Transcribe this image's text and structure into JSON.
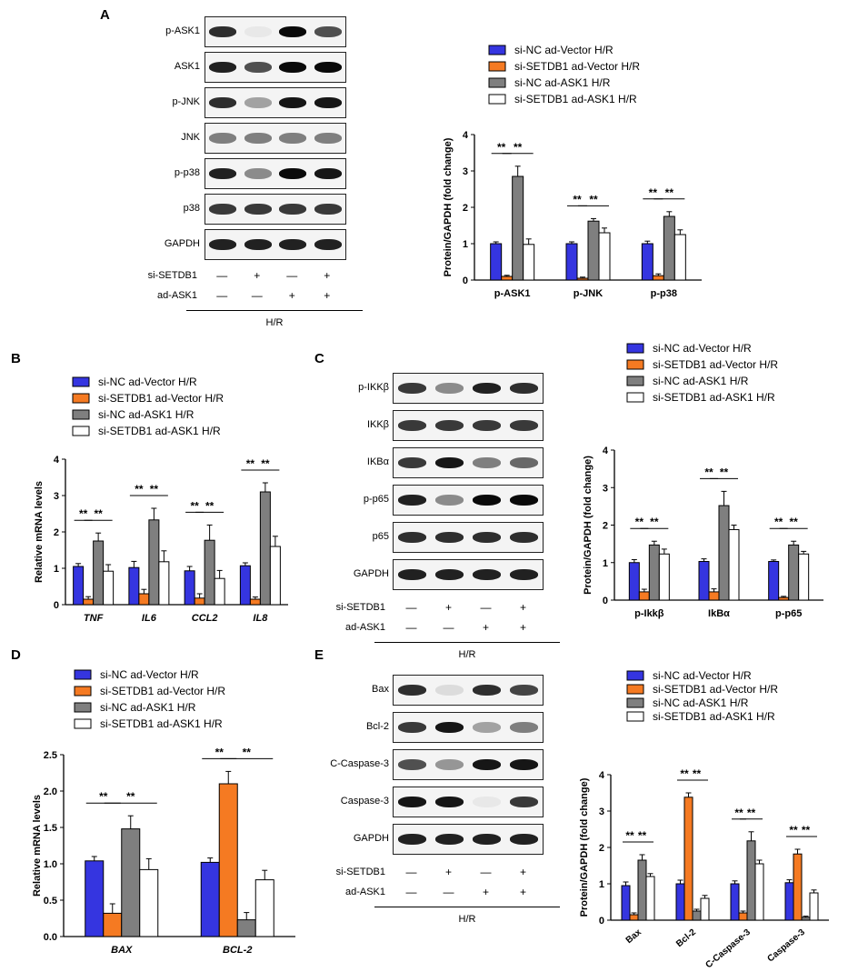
{
  "colors": {
    "vector": "#3535e0",
    "setdb1": "#f57a22",
    "ask1": "#7f7f7f",
    "setdb1ask1": "#ffffff"
  },
  "legend": [
    "si-NC ad-Vector H/R",
    "si-SETDB1 ad-Vector H/R",
    "si-NC ad-ASK1 H/R",
    "si-SETDB1 ad-ASK1 H/R"
  ],
  "conditions": {
    "si_label": "si-SETDB1",
    "ad_label": "ad-ASK1",
    "si": [
      "—",
      "+",
      "—",
      "+"
    ],
    "ad": [
      "—",
      "—",
      "+",
      "+"
    ],
    "hr": "H/R"
  },
  "sig": "**",
  "panels": {
    "A": {
      "letter": "A",
      "blots": [
        "p-ASK1",
        "ASK1",
        "p-JNK",
        "JNK",
        "p-p38",
        "p38",
        "GAPDH"
      ]
    },
    "B": {
      "letter": "B"
    },
    "C": {
      "letter": "C",
      "blots": [
        "p-IKKβ",
        "IKKβ",
        "IKBα",
        "p-p65",
        "p65",
        "GAPDH"
      ]
    },
    "D": {
      "letter": "D"
    },
    "E": {
      "letter": "E",
      "blots": [
        "Bax",
        "Bcl-2",
        "C-Caspase-3",
        "Caspase-3",
        "GAPDH"
      ]
    }
  },
  "chart_data": [
    {
      "id": "A",
      "type": "bar",
      "ylabel": "Protein/GAPDH (fold change)",
      "ylim": [
        0,
        4
      ],
      "yticks": [
        0,
        1,
        2,
        3,
        4
      ],
      "categories": [
        "p-ASK1",
        "p-JNK",
        "p-p38"
      ],
      "italic": false,
      "series": [
        {
          "name": "si-NC ad-Vector H/R",
          "values": [
            1.0,
            1.0,
            1.0
          ],
          "errors": [
            0.05,
            0.05,
            0.07
          ]
        },
        {
          "name": "si-SETDB1 ad-Vector H/R",
          "values": [
            0.1,
            0.05,
            0.12
          ],
          "errors": [
            0.03,
            0.03,
            0.05
          ]
        },
        {
          "name": "si-NC ad-ASK1 H/R",
          "values": [
            2.85,
            1.62,
            1.75
          ],
          "errors": [
            0.28,
            0.07,
            0.13
          ]
        },
        {
          "name": "si-SETDB1 ad-ASK1 H/R",
          "values": [
            0.98,
            1.3,
            1.25
          ],
          "errors": [
            0.15,
            0.13,
            0.13
          ]
        }
      ]
    },
    {
      "id": "B",
      "type": "bar",
      "ylabel": "Relative mRNA levels",
      "ylim": [
        0,
        4
      ],
      "yticks": [
        0,
        1,
        2,
        3,
        4
      ],
      "categories": [
        "TNF",
        "IL6",
        "CCL2",
        "IL8"
      ],
      "italic": true,
      "series": [
        {
          "name": "si-NC ad-Vector H/R",
          "values": [
            1.05,
            1.02,
            0.93,
            1.07
          ],
          "errors": [
            0.08,
            0.17,
            0.12,
            0.08
          ]
        },
        {
          "name": "si-SETDB1 ad-Vector H/R",
          "values": [
            0.15,
            0.3,
            0.18,
            0.15
          ],
          "errors": [
            0.07,
            0.12,
            0.12,
            0.06
          ]
        },
        {
          "name": "si-NC ad-ASK1 H/R",
          "values": [
            1.75,
            2.33,
            1.77,
            3.1
          ],
          "errors": [
            0.22,
            0.32,
            0.42,
            0.25
          ]
        },
        {
          "name": "si-SETDB1 ad-ASK1 H/R",
          "values": [
            0.92,
            1.18,
            0.72,
            1.6
          ],
          "errors": [
            0.18,
            0.3,
            0.22,
            0.28
          ]
        }
      ]
    },
    {
      "id": "C",
      "type": "bar",
      "ylabel": "Protein/GAPDH (fold change)",
      "ylim": [
        0,
        4
      ],
      "yticks": [
        0,
        1,
        2,
        3,
        4
      ],
      "categories": [
        "p-Ikkβ",
        "IkBα",
        "p-p65"
      ],
      "italic": false,
      "series": [
        {
          "name": "si-NC ad-Vector H/R",
          "values": [
            1.0,
            1.03,
            1.03
          ],
          "errors": [
            0.08,
            0.07,
            0.04
          ]
        },
        {
          "name": "si-SETDB1 ad-Vector H/R",
          "values": [
            0.22,
            0.22,
            0.07
          ],
          "errors": [
            0.07,
            0.08,
            0.03
          ]
        },
        {
          "name": "si-NC ad-ASK1 H/R",
          "values": [
            1.47,
            2.52,
            1.47
          ],
          "errors": [
            0.1,
            0.38,
            0.1
          ]
        },
        {
          "name": "si-SETDB1 ad-ASK1 H/R",
          "values": [
            1.23,
            1.88,
            1.23
          ],
          "errors": [
            0.13,
            0.12,
            0.07
          ]
        }
      ]
    },
    {
      "id": "D",
      "type": "bar",
      "ylabel": "Relative mRNA levels",
      "ylim": [
        0,
        2.5
      ],
      "yticks": [
        0.0,
        0.5,
        1.0,
        1.5,
        2.0,
        2.5
      ],
      "categories": [
        "BAX",
        "BCL-2"
      ],
      "italic": true,
      "series": [
        {
          "name": "si-NC ad-Vector H/R",
          "values": [
            1.04,
            1.02
          ],
          "errors": [
            0.06,
            0.06
          ]
        },
        {
          "name": "si-SETDB1 ad-Vector H/R",
          "values": [
            0.32,
            2.1
          ],
          "errors": [
            0.13,
            0.17
          ]
        },
        {
          "name": "si-NC ad-ASK1 H/R",
          "values": [
            1.48,
            0.23
          ],
          "errors": [
            0.18,
            0.1
          ]
        },
        {
          "name": "si-SETDB1 ad-ASK1 H/R",
          "values": [
            0.92,
            0.78
          ],
          "errors": [
            0.15,
            0.13
          ]
        }
      ]
    },
    {
      "id": "E",
      "type": "bar",
      "ylabel": "Protein/GAPDH (fold change)",
      "ylim": [
        0,
        4
      ],
      "yticks": [
        0,
        1,
        2,
        3,
        4
      ],
      "categories": [
        "Bax",
        "Bcl-2",
        "C-Caspase-3",
        "Caspase-3"
      ],
      "italic": false,
      "series": [
        {
          "name": "si-NC ad-Vector H/R",
          "values": [
            0.95,
            1.0,
            1.0,
            1.03
          ],
          "errors": [
            0.1,
            0.1,
            0.08,
            0.08
          ]
        },
        {
          "name": "si-SETDB1 ad-Vector H/R",
          "values": [
            0.15,
            3.38,
            0.2,
            1.82
          ],
          "errors": [
            0.05,
            0.12,
            0.05,
            0.13
          ]
        },
        {
          "name": "si-NC ad-ASK1 H/R",
          "values": [
            1.65,
            0.25,
            2.18,
            0.08
          ],
          "errors": [
            0.15,
            0.05,
            0.25,
            0.03
          ]
        },
        {
          "name": "si-SETDB1 ad-ASK1 H/R",
          "values": [
            1.2,
            0.6,
            1.55,
            0.75
          ],
          "errors": [
            0.08,
            0.08,
            0.1,
            0.08
          ]
        }
      ]
    }
  ]
}
